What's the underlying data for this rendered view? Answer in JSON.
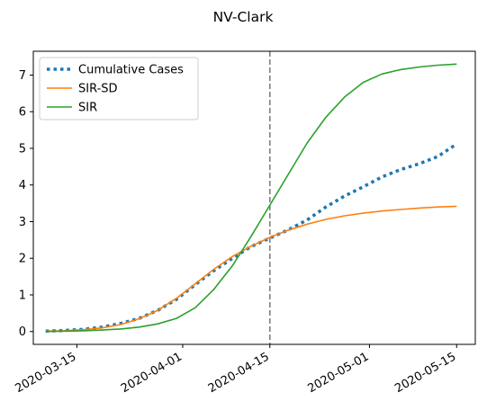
{
  "chart_data": {
    "type": "line",
    "title": "NV-Clark",
    "xlabel": "",
    "ylabel": "",
    "x_ticks": [
      "2020-03-15",
      "2020-04-01",
      "2020-04-15",
      "2020-05-01",
      "2020-05-15"
    ],
    "y_ticks": [
      "0",
      "1",
      "2",
      "3",
      "4",
      "5",
      "6",
      "7"
    ],
    "ylim": [
      -0.35,
      7.65
    ],
    "xlim": [
      "2020-03-08",
      "2020-05-18"
    ],
    "legend_position": "top-left",
    "grid": false,
    "vline": {
      "x": "2020-04-15",
      "style": "dashed",
      "color": "#7f7f7f"
    },
    "series": [
      {
        "name": "Cumulative Cases",
        "style": "dotted",
        "color": "#1f77b4",
        "x": [
          "2020-03-10",
          "2020-03-13",
          "2020-03-16",
          "2020-03-19",
          "2020-03-22",
          "2020-03-25",
          "2020-03-28",
          "2020-03-31",
          "2020-04-03",
          "2020-04-06",
          "2020-04-09",
          "2020-04-12",
          "2020-04-15",
          "2020-04-18",
          "2020-04-21",
          "2020-04-24",
          "2020-04-27",
          "2020-04-30",
          "2020-05-03",
          "2020-05-06",
          "2020-05-09",
          "2020-05-12",
          "2020-05-15"
        ],
        "values": [
          0.01,
          0.03,
          0.06,
          0.12,
          0.22,
          0.36,
          0.58,
          0.88,
          1.28,
          1.66,
          2.0,
          2.32,
          2.55,
          2.78,
          3.05,
          3.4,
          3.7,
          3.95,
          4.22,
          4.42,
          4.58,
          4.78,
          5.12
        ]
      },
      {
        "name": "SIR-SD",
        "style": "solid",
        "color": "#ff7f0e",
        "x": [
          "2020-03-10",
          "2020-03-13",
          "2020-03-16",
          "2020-03-19",
          "2020-03-22",
          "2020-03-25",
          "2020-03-28",
          "2020-03-31",
          "2020-04-03",
          "2020-04-06",
          "2020-04-09",
          "2020-04-12",
          "2020-04-15",
          "2020-04-18",
          "2020-04-21",
          "2020-04-24",
          "2020-04-27",
          "2020-04-30",
          "2020-05-03",
          "2020-05-06",
          "2020-05-09",
          "2020-05-12",
          "2020-05-15"
        ],
        "values": [
          0.01,
          0.02,
          0.05,
          0.1,
          0.19,
          0.35,
          0.58,
          0.91,
          1.3,
          1.7,
          2.05,
          2.33,
          2.57,
          2.77,
          2.93,
          3.06,
          3.16,
          3.23,
          3.29,
          3.33,
          3.37,
          3.4,
          3.42
        ]
      },
      {
        "name": "SIR",
        "style": "solid",
        "color": "#2ca02c",
        "x": [
          "2020-03-10",
          "2020-03-13",
          "2020-03-16",
          "2020-03-19",
          "2020-03-22",
          "2020-03-25",
          "2020-03-28",
          "2020-03-31",
          "2020-04-03",
          "2020-04-06",
          "2020-04-09",
          "2020-04-12",
          "2020-04-15",
          "2020-04-18",
          "2020-04-21",
          "2020-04-24",
          "2020-04-27",
          "2020-04-30",
          "2020-05-03",
          "2020-05-06",
          "2020-05-09",
          "2020-05-12",
          "2020-05-15"
        ],
        "values": [
          0.0,
          0.01,
          0.02,
          0.04,
          0.07,
          0.12,
          0.21,
          0.36,
          0.65,
          1.15,
          1.8,
          2.6,
          3.45,
          4.3,
          5.15,
          5.85,
          6.4,
          6.8,
          7.03,
          7.15,
          7.22,
          7.27,
          7.3
        ]
      }
    ]
  }
}
